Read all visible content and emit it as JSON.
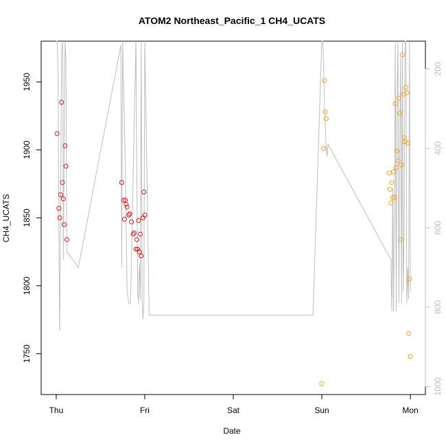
{
  "chart_data": {
    "type": "scatter",
    "title": "ATOM2 Northeast_Pacific_1 CH4_UCATS",
    "xlabel": "Date",
    "ylabel": "CH4_UCATS",
    "x_ticks": [
      "Thu",
      "Fri",
      "Sat",
      "Sun",
      "Mon"
    ],
    "x_tick_positions": [
      0,
      1,
      2,
      3,
      4
    ],
    "xlim": [
      -0.17,
      4.17
    ],
    "ylim": [
      1720,
      1980
    ],
    "y_ticks": [
      1750,
      1800,
      1850,
      1900,
      1950
    ],
    "y2_ticks": [
      200,
      400,
      600,
      800,
      1000
    ],
    "y2lim": [
      130,
      1020
    ],
    "y2_reversed": true,
    "grid": false,
    "colors": {
      "series1": "#e41a1c",
      "series2": "#ff9f1c",
      "pressure_line": "#bdbdbd",
      "axis": "#000000",
      "right_axis": "#bdbdbd"
    },
    "series": [
      {
        "color": "#e41a1c",
        "x": [
          0.01,
          0.03,
          0.04,
          0.05,
          0.06,
          0.07,
          0.08,
          0.09,
          0.1,
          0.11,
          0.12,
          0.74,
          0.76,
          0.77,
          0.78,
          0.79,
          0.8,
          0.82,
          0.83,
          0.85,
          0.87,
          0.88,
          0.9,
          0.91,
          0.92,
          0.93,
          0.94,
          0.95,
          0.96,
          0.98,
          0.99,
          1.0
        ],
        "y": [
          1912,
          1857,
          1850,
          1867,
          1935,
          1876,
          1864,
          1845,
          1903,
          1888,
          1834,
          1876,
          1863,
          1849,
          1863,
          1860,
          1858,
          1852,
          1853,
          1847,
          1838,
          1839,
          1827,
          1834,
          1827,
          1848,
          1825,
          1838,
          1822,
          1850,
          1869,
          1852
        ]
      },
      {
        "color": "#ff9f1c",
        "x": [
          3.0,
          3.02,
          3.03,
          3.04,
          3.05,
          3.76,
          3.77,
          3.78,
          3.79,
          3.8,
          3.81,
          3.82,
          3.83,
          3.84,
          3.85,
          3.86,
          3.87,
          3.88,
          3.89,
          3.9,
          3.91,
          3.92,
          3.93,
          3.94,
          3.95,
          3.96,
          3.97,
          3.98,
          3.99,
          4.0
        ],
        "y": [
          1728,
          1901,
          1951,
          1928,
          1923,
          1883,
          1871,
          1861,
          1876,
          1865,
          1884,
          1865,
          1934,
          1887,
          1899,
          1892,
          1938,
          1927,
          1834,
          1889,
          1970,
          1941,
          1909,
          1906,
          1946,
          1942,
          1905,
          1765,
          1805,
          1748
        ]
      }
    ],
    "pressure_line": {
      "x": [
        0.0,
        0.01,
        0.02,
        0.03,
        0.035,
        0.04,
        0.05,
        0.06,
        0.07,
        0.075,
        0.08,
        0.09,
        0.1,
        0.11,
        0.12,
        0.25,
        0.73,
        0.74,
        0.75,
        0.78,
        0.8,
        0.82,
        0.84,
        0.9,
        0.92,
        0.93,
        0.94,
        0.95,
        0.96,
        0.97,
        0.98,
        0.99,
        1.0,
        1.05,
        2.9,
        3.0,
        3.01,
        3.02,
        3.03,
        3.04,
        3.05,
        3.06,
        3.07,
        3.78,
        3.79,
        3.8,
        3.81,
        3.82,
        3.83,
        3.84,
        3.85,
        3.86,
        3.87,
        3.88,
        3.89,
        3.9,
        3.91,
        3.92,
        3.93,
        3.94,
        3.95,
        3.96,
        3.97,
        3.98,
        3.99,
        4.0
      ],
      "p": [
        120,
        110,
        200,
        600,
        760,
        860,
        500,
        160,
        110,
        160,
        680,
        400,
        130,
        180,
        660,
        700,
        140,
        700,
        130,
        440,
        760,
        790,
        790,
        130,
        760,
        790,
        690,
        780,
        130,
        780,
        830,
        790,
        130,
        820,
        820,
        120,
        130,
        180,
        300,
        350,
        400,
        420,
        390,
        680,
        810,
        500,
        810,
        540,
        120,
        810,
        300,
        120,
        790,
        400,
        170,
        790,
        130,
        760,
        600,
        130,
        110,
        790,
        700,
        780,
        130,
        760
      ]
    }
  }
}
